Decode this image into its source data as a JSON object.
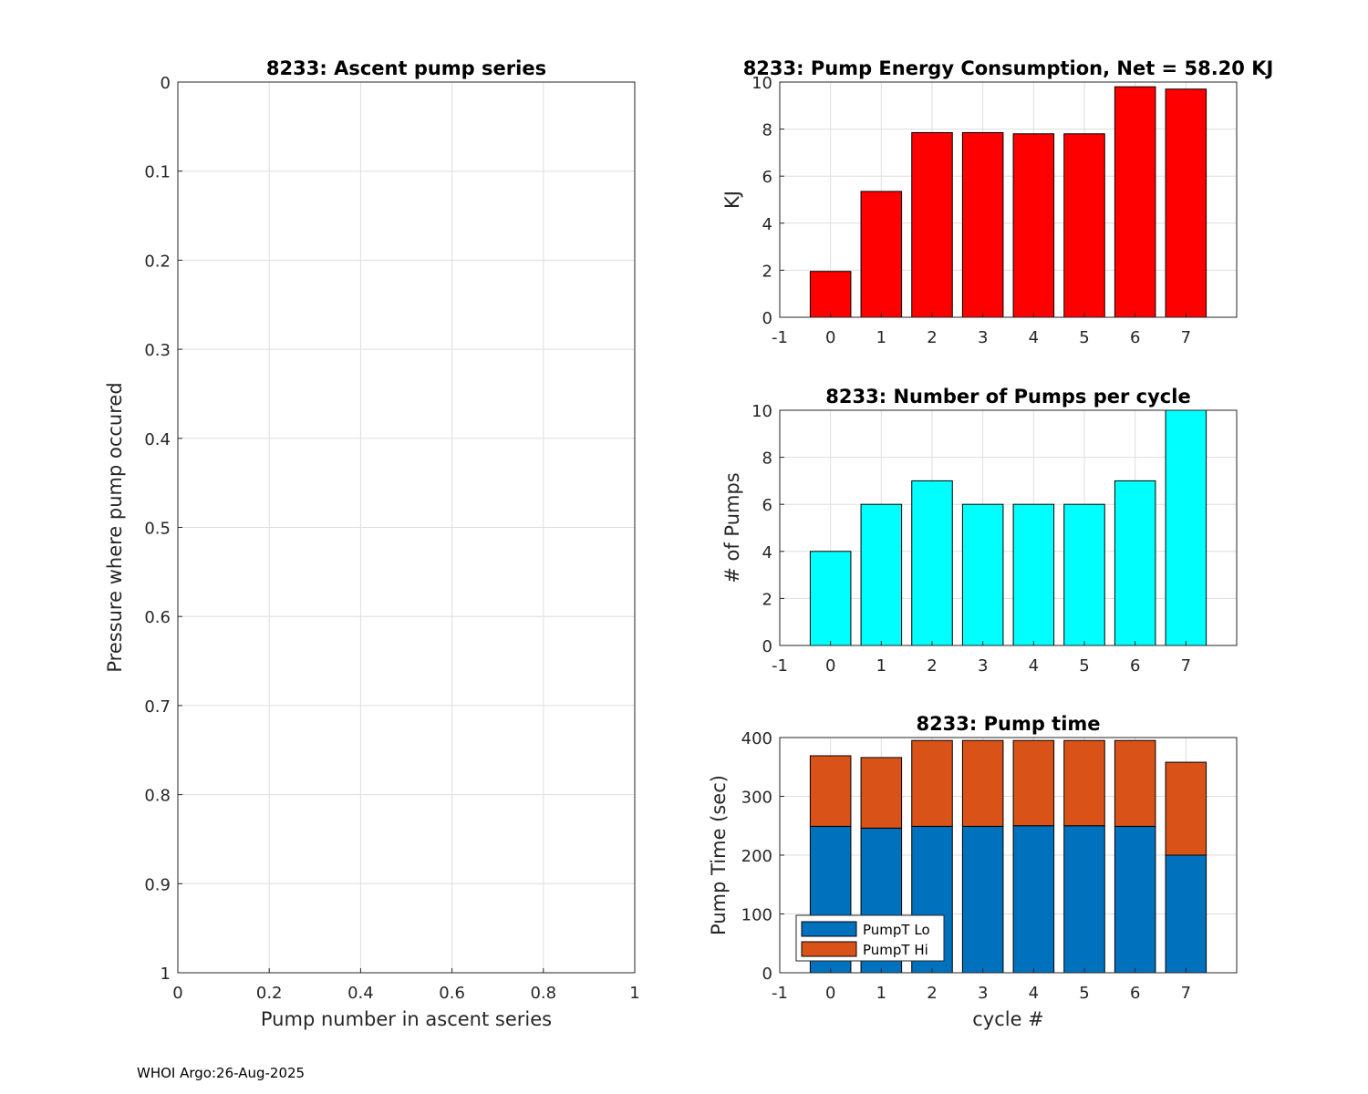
{
  "footer": "WHOI Argo:26-Aug-2025",
  "colors": {
    "energy": "#ff0000",
    "pumps": "#00ffff",
    "pump_lo": "#0072bd",
    "pump_hi": "#d95319",
    "grid": "#dedede",
    "axis": "#262626"
  },
  "chart_data": [
    {
      "id": "ascent",
      "type": "scatter",
      "title": "8233: Ascent pump series",
      "xlabel": "Pump number in ascent series",
      "ylabel": "Pressure where pump occured",
      "xlim": [
        0,
        1
      ],
      "ylim": [
        0,
        1
      ],
      "y_reversed": true,
      "xticks": [
        0,
        0.2,
        0.4,
        0.6,
        0.8,
        1
      ],
      "xtick_labels": [
        "0",
        "0.2",
        "0.4",
        "0.6",
        "0.8",
        "1"
      ],
      "yticks": [
        0,
        0.1,
        0.2,
        0.3,
        0.4,
        0.5,
        0.6,
        0.7,
        0.8,
        0.9,
        1
      ],
      "ytick_labels": [
        "0",
        "0.1",
        "0.2",
        "0.3",
        "0.4",
        "0.5",
        "0.6",
        "0.7",
        "0.8",
        "0.9",
        "1"
      ],
      "grid": true,
      "points": []
    },
    {
      "id": "energy",
      "type": "bar",
      "title": "8233: Pump Energy Consumption,  Net =  58.20 KJ",
      "xlabel": "",
      "ylabel": "KJ",
      "categories": [
        0,
        1,
        2,
        3,
        4,
        5,
        6,
        7
      ],
      "values": [
        1.95,
        5.35,
        7.85,
        7.85,
        7.8,
        7.8,
        9.8,
        9.7
      ],
      "xlim": [
        -1,
        8
      ],
      "ylim": [
        0,
        10
      ],
      "xticks": [
        -1,
        0,
        1,
        2,
        3,
        4,
        5,
        6,
        7
      ],
      "xtick_labels": [
        "-1",
        "0",
        "1",
        "2",
        "3",
        "4",
        "5",
        "6",
        "7"
      ],
      "yticks": [
        0,
        2,
        4,
        6,
        8,
        10
      ],
      "ytick_labels": [
        "0",
        "2",
        "4",
        "6",
        "8",
        "10"
      ],
      "grid": true
    },
    {
      "id": "pumps",
      "type": "bar",
      "title": "8233: Number of Pumps per cycle",
      "xlabel": "",
      "ylabel": "# of Pumps",
      "categories": [
        0,
        1,
        2,
        3,
        4,
        5,
        6,
        7
      ],
      "values": [
        4,
        6,
        7,
        6,
        6,
        6,
        7,
        10
      ],
      "xlim": [
        -1,
        8
      ],
      "ylim": [
        0,
        10
      ],
      "xticks": [
        -1,
        0,
        1,
        2,
        3,
        4,
        5,
        6,
        7
      ],
      "xtick_labels": [
        "-1",
        "0",
        "1",
        "2",
        "3",
        "4",
        "5",
        "6",
        "7"
      ],
      "yticks": [
        0,
        2,
        4,
        6,
        8,
        10
      ],
      "ytick_labels": [
        "0",
        "2",
        "4",
        "6",
        "8",
        "10"
      ],
      "grid": true
    },
    {
      "id": "pumptime",
      "type": "bar",
      "stacked": true,
      "title": "8233: Pump time",
      "xlabel": "cycle #",
      "ylabel": "Pump Time (sec)",
      "categories": [
        0,
        1,
        2,
        3,
        4,
        5,
        6,
        7
      ],
      "series": [
        {
          "name": "PumpT Lo",
          "values": [
            249,
            246,
            249,
            249,
            250,
            250,
            249,
            200
          ]
        },
        {
          "name": "PumpT Hi",
          "values": [
            120,
            120,
            146,
            146,
            145,
            145,
            146,
            158
          ]
        }
      ],
      "xlim": [
        -1,
        8
      ],
      "ylim": [
        0,
        400
      ],
      "xticks": [
        -1,
        0,
        1,
        2,
        3,
        4,
        5,
        6,
        7
      ],
      "xtick_labels": [
        "-1",
        "0",
        "1",
        "2",
        "3",
        "4",
        "5",
        "6",
        "7"
      ],
      "yticks": [
        0,
        100,
        200,
        300,
        400
      ],
      "ytick_labels": [
        "0",
        "100",
        "200",
        "300",
        "400"
      ],
      "legend": "bottom-left",
      "grid": true
    }
  ]
}
